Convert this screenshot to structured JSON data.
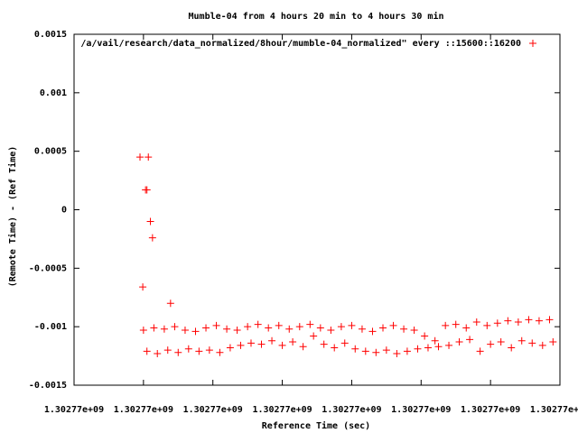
{
  "chart_data": {
    "type": "scatter",
    "title": "Mumble-04 from 4 hours 20 min to 4 hours 30 min",
    "x_label": "Reference Time (sec)",
    "y_label": "(Remote Time) - (Ref Time)",
    "xlim": [
      1302770400,
      1302771100
    ],
    "ylim": [
      -0.0015,
      0.0015
    ],
    "xticks": [
      {
        "value": 1302770400,
        "label": "1.30277e+09"
      },
      {
        "value": 1302770500,
        "label": "1.30277e+09"
      },
      {
        "value": 1302770600,
        "label": "1.30277e+09"
      },
      {
        "value": 1302770700,
        "label": "1.30277e+09"
      },
      {
        "value": 1302770800,
        "label": "1.30277e+09"
      },
      {
        "value": 1302770900,
        "label": "1.30277e+09"
      },
      {
        "value": 1302771000,
        "label": "1.30277e+09"
      },
      {
        "value": 1302771100,
        "label": "1.30277e+09"
      }
    ],
    "yticks": [
      0.0015,
      0.001,
      0.0005,
      0,
      -0.0005,
      -0.001,
      -0.0015
    ],
    "grid": false,
    "legend": "top-right",
    "series": [
      {
        "name": "/a/vail/research/data_normalized/8hour/mumble-04_normalized\" every ::15600::16200",
        "color": "#ff0000",
        "x": [
          1302770495,
          1302770507,
          1302770503,
          1302770505,
          1302770510,
          1302770513,
          1302770499,
          1302770539,
          1302770500,
          1302770515,
          1302770530,
          1302770545,
          1302770560,
          1302770575,
          1302770590,
          1302770605,
          1302770620,
          1302770635,
          1302770650,
          1302770665,
          1302770680,
          1302770695,
          1302770710,
          1302770725,
          1302770740,
          1302770755,
          1302770770,
          1302770785,
          1302770800,
          1302770815,
          1302770830,
          1302770845,
          1302770860,
          1302770875,
          1302770890,
          1302770905,
          1302770920,
          1302770935,
          1302770950,
          1302770965,
          1302770980,
          1302770995,
          1302771010,
          1302771025,
          1302771040,
          1302771055,
          1302771070,
          1302771085,
          1302770505,
          1302770520,
          1302770535,
          1302770550,
          1302770565,
          1302770580,
          1302770595,
          1302770610,
          1302770625,
          1302770640,
          1302770655,
          1302770670,
          1302770685,
          1302770700,
          1302770715,
          1302770730,
          1302770745,
          1302770760,
          1302770775,
          1302770790,
          1302770805,
          1302770820,
          1302770835,
          1302770850,
          1302770865,
          1302770880,
          1302770895,
          1302770910,
          1302770925,
          1302770940,
          1302770955,
          1302770970,
          1302770985,
          1302771000,
          1302771015,
          1302771030,
          1302771045,
          1302771060,
          1302771075,
          1302771090
        ],
        "values": [
          0.00045,
          0.00045,
          0.00017,
          0.00017,
          -0.0001,
          -0.00024,
          -0.00066,
          -0.0008,
          -0.00103,
          -0.00101,
          -0.00102,
          -0.001,
          -0.00103,
          -0.00104,
          -0.00101,
          -0.00099,
          -0.00102,
          -0.00103,
          -0.001,
          -0.00098,
          -0.00101,
          -0.00099,
          -0.00102,
          -0.001,
          -0.00098,
          -0.00101,
          -0.00103,
          -0.001,
          -0.00099,
          -0.00102,
          -0.00104,
          -0.00101,
          -0.00099,
          -0.00102,
          -0.00103,
          -0.00108,
          -0.00112,
          -0.00099,
          -0.00098,
          -0.00101,
          -0.00096,
          -0.00099,
          -0.00097,
          -0.00095,
          -0.00096,
          -0.00094,
          -0.00095,
          -0.00094,
          -0.00121,
          -0.00123,
          -0.0012,
          -0.00122,
          -0.00119,
          -0.00121,
          -0.0012,
          -0.00122,
          -0.00118,
          -0.00116,
          -0.00114,
          -0.00115,
          -0.00112,
          -0.00116,
          -0.00113,
          -0.00117,
          -0.00108,
          -0.00115,
          -0.00118,
          -0.00114,
          -0.00119,
          -0.00121,
          -0.00122,
          -0.0012,
          -0.00123,
          -0.00121,
          -0.00119,
          -0.00118,
          -0.00117,
          -0.00116,
          -0.00113,
          -0.00111,
          -0.00121,
          -0.00115,
          -0.00113,
          -0.00118,
          -0.00112,
          -0.00114,
          -0.00116,
          -0.00113
        ]
      }
    ]
  }
}
